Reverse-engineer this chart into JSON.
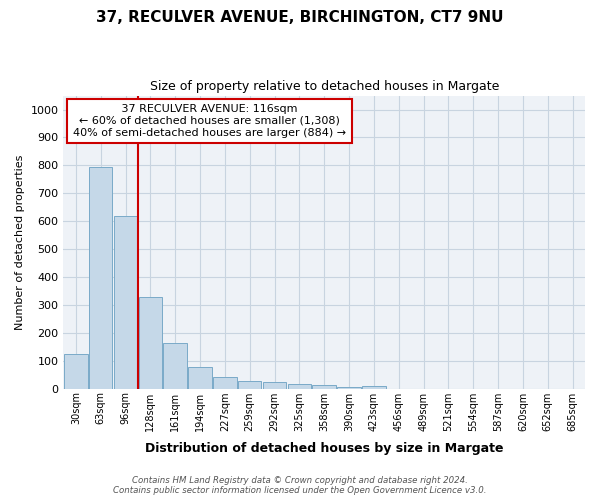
{
  "title_line1": "37, RECULVER AVENUE, BIRCHINGTON, CT7 9NU",
  "title_line2": "Size of property relative to detached houses in Margate",
  "xlabel": "Distribution of detached houses by size in Margate",
  "ylabel": "Number of detached properties",
  "footer_line1": "Contains HM Land Registry data © Crown copyright and database right 2024.",
  "footer_line2": "Contains public sector information licensed under the Open Government Licence v3.0.",
  "annotation_line1": "37 RECULVER AVENUE: 116sqm",
  "annotation_line2": "← 60% of detached houses are smaller (1,308)",
  "annotation_line3": "40% of semi-detached houses are larger (884) →",
  "bar_labels": [
    "30sqm",
    "63sqm",
    "96sqm",
    "128sqm",
    "161sqm",
    "194sqm",
    "227sqm",
    "259sqm",
    "292sqm",
    "325sqm",
    "358sqm",
    "390sqm",
    "423sqm",
    "456sqm",
    "489sqm",
    "521sqm",
    "554sqm",
    "587sqm",
    "620sqm",
    "652sqm",
    "685sqm"
  ],
  "bar_values": [
    125,
    795,
    620,
    330,
    163,
    78,
    40,
    28,
    25,
    18,
    12,
    5,
    8,
    0,
    0,
    0,
    0,
    0,
    0,
    0,
    0
  ],
  "bar_color": "#c5d8e8",
  "bar_edgecolor": "#7aaac8",
  "vline_color": "#cc0000",
  "ylim": [
    0,
    1050
  ],
  "yticks": [
    0,
    100,
    200,
    300,
    400,
    500,
    600,
    700,
    800,
    900,
    1000
  ],
  "grid_color": "#c8d4e0",
  "bg_color": "#eef2f7",
  "title1_fontsize": 11,
  "title2_fontsize": 9,
  "annotation_box_edgecolor": "#cc0000",
  "annotation_box_fill": "#ffffff"
}
